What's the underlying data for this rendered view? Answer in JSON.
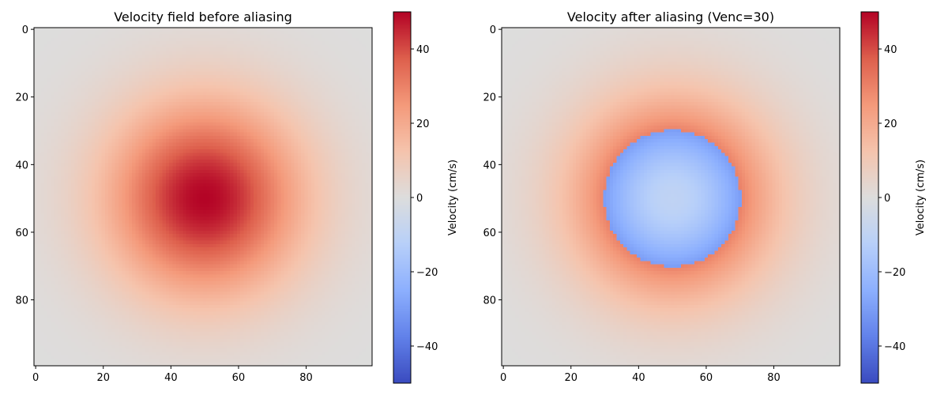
{
  "chart_data": [
    {
      "type": "heatmap",
      "title": "Velocity field before aliasing",
      "grid_size": 100,
      "field": "gaussian",
      "peak": 50,
      "center": [
        50,
        50
      ],
      "sigma": 20,
      "xlim": [
        -0.5,
        99.5
      ],
      "ylim": [
        99.5,
        -0.5
      ],
      "x_ticks": [
        0,
        20,
        40,
        60,
        80
      ],
      "y_ticks": [
        0,
        20,
        40,
        60,
        80
      ],
      "colormap": "coolwarm",
      "colorbar": {
        "label": "Velocity (cm/s)",
        "vmin": -50,
        "vmax": 50,
        "ticks": [
          40,
          20,
          0,
          -20,
          -40
        ],
        "tick_labels": [
          "40",
          "20",
          "0",
          "−20",
          "−40"
        ]
      }
    },
    {
      "type": "heatmap",
      "title": "Velocity after aliasing (Venc=30)",
      "grid_size": 100,
      "field": "gaussian_aliased",
      "peak": 50,
      "center": [
        50,
        50
      ],
      "sigma": 20,
      "venc": 30,
      "xlim": [
        -0.5,
        99.5
      ],
      "ylim": [
        99.5,
        -0.5
      ],
      "x_ticks": [
        0,
        20,
        40,
        60,
        80
      ],
      "y_ticks": [
        0,
        20,
        40,
        60,
        80
      ],
      "colormap": "coolwarm",
      "colorbar": {
        "label": "Velocity (cm/s)",
        "vmin": -50,
        "vmax": 50,
        "ticks": [
          40,
          20,
          0,
          -20,
          -40
        ],
        "tick_labels": [
          "40",
          "20",
          "0",
          "−20",
          "−40"
        ]
      }
    }
  ]
}
